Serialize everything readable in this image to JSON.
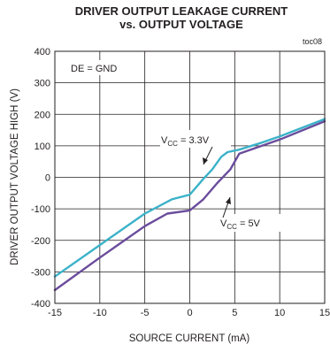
{
  "chart_data": {
    "type": "line",
    "title_line1": "DRIVER OUTPUT LEAKAGE CURRENT",
    "title_line2": "vs. OUTPUT VOLTAGE",
    "tag": "toc08",
    "xlabel": "SOURCE CURRENT (mA)",
    "ylabel": "DRIVER OUTPUT VOLTAGE HIGH (V)",
    "xlim": [
      -15,
      15
    ],
    "ylim": [
      -400,
      400
    ],
    "xticks": [
      -15,
      -10,
      -5,
      0,
      5,
      10,
      15
    ],
    "yticks": [
      -400,
      -300,
      -200,
      -100,
      0,
      100,
      200,
      300,
      400
    ],
    "grid": true,
    "condition_label": "DE = GND",
    "series": [
      {
        "name": "VCC = 3.3V",
        "label_main": "V",
        "label_sub": "CC",
        "label_rest": " = 3.3V",
        "color": "#3bb2c9",
        "x": [
          -15,
          -10,
          -5,
          -2,
          0,
          1.5,
          2.5,
          3.5,
          4.2,
          5.5,
          8,
          10,
          15
        ],
        "y": [
          -315,
          -215,
          -115,
          -70,
          -55,
          -5,
          25,
          65,
          80,
          88,
          110,
          130,
          185
        ]
      },
      {
        "name": "VCC = 5V",
        "label_main": "V",
        "label_sub": "CC",
        "label_rest": " = 5V",
        "color": "#6a4c9c",
        "x": [
          -15,
          -10,
          -5,
          -2.5,
          0,
          1.5,
          3,
          4.5,
          5.5,
          8,
          10,
          15
        ],
        "y": [
          -358,
          -255,
          -155,
          -115,
          -105,
          -70,
          -20,
          25,
          75,
          100,
          120,
          178
        ]
      }
    ]
  }
}
